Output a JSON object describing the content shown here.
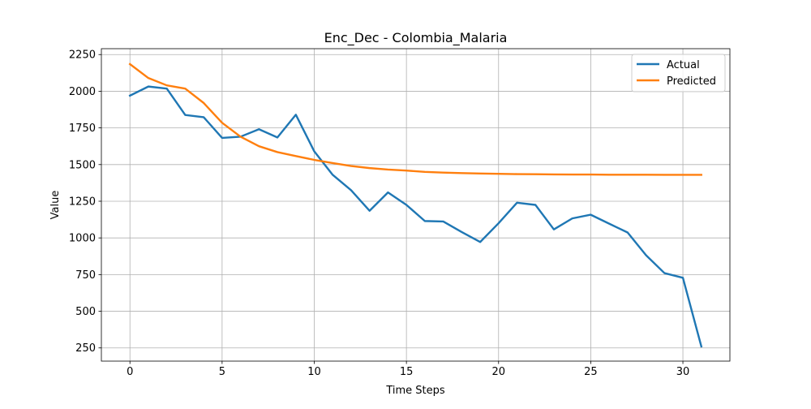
{
  "chart_data": {
    "type": "line",
    "title": "Enc_Dec - Colombia_Malaria",
    "xlabel": "Time Steps",
    "ylabel": "Value",
    "xlim": [
      -1.55,
      32.55
    ],
    "ylim": [
      160,
      2290
    ],
    "xticks": [
      0,
      5,
      10,
      15,
      20,
      25,
      30
    ],
    "yticks": [
      250,
      500,
      750,
      1000,
      1250,
      1500,
      1750,
      2000,
      2250
    ],
    "grid": true,
    "legend_position": "top-right",
    "x": [
      0,
      1,
      2,
      3,
      4,
      5,
      6,
      7,
      8,
      9,
      10,
      11,
      12,
      13,
      14,
      15,
      16,
      17,
      18,
      19,
      20,
      21,
      22,
      23,
      24,
      25,
      26,
      27,
      28,
      29,
      30,
      31
    ],
    "series": [
      {
        "name": "Actual",
        "color": "#1f77b4",
        "values": [
          1970,
          2032,
          2018,
          1838,
          1823,
          1682,
          1690,
          1741,
          1685,
          1840,
          1590,
          1430,
          1325,
          1185,
          1310,
          1225,
          1115,
          1112,
          1040,
          972,
          1100,
          1240,
          1225,
          1058,
          1133,
          1158,
          1097,
          1037,
          882,
          760,
          728,
          260
        ]
      },
      {
        "name": "Predicted",
        "color": "#ff7f0e",
        "values": [
          2185,
          2090,
          2040,
          2018,
          1920,
          1785,
          1690,
          1625,
          1585,
          1558,
          1532,
          1510,
          1490,
          1476,
          1466,
          1459,
          1450,
          1445,
          1442,
          1439,
          1437,
          1435,
          1434,
          1433,
          1432,
          1432,
          1431,
          1431,
          1431,
          1430,
          1430,
          1430
        ]
      }
    ]
  }
}
